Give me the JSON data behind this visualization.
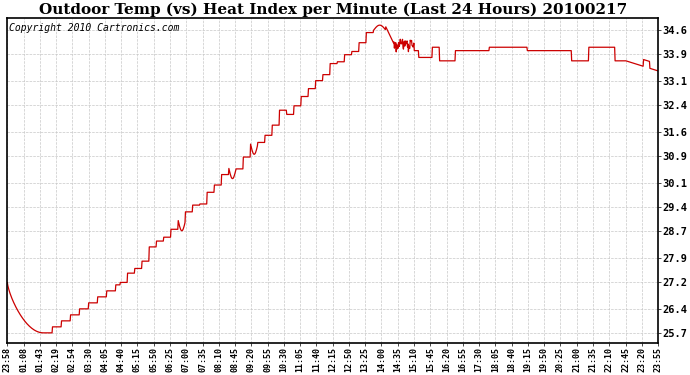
{
  "title": "Outdoor Temp (vs) Heat Index per Minute (Last 24 Hours) 20100217",
  "copyright": "Copyright 2010 Cartronics.com",
  "yticks": [
    25.7,
    26.4,
    27.2,
    27.9,
    28.7,
    29.4,
    30.1,
    30.9,
    31.6,
    32.4,
    33.1,
    33.9,
    34.6
  ],
  "ylim": [
    25.4,
    34.95
  ],
  "xtick_labels": [
    "23:58",
    "01:08",
    "01:43",
    "02:19",
    "02:54",
    "03:30",
    "04:05",
    "04:40",
    "05:15",
    "05:50",
    "06:25",
    "07:00",
    "07:35",
    "08:10",
    "08:45",
    "09:20",
    "09:55",
    "10:30",
    "11:05",
    "11:40",
    "12:15",
    "12:50",
    "13:25",
    "14:00",
    "14:35",
    "15:10",
    "15:45",
    "16:20",
    "16:55",
    "17:30",
    "18:05",
    "18:40",
    "19:15",
    "19:50",
    "20:25",
    "21:00",
    "21:35",
    "22:10",
    "22:45",
    "23:20",
    "23:55"
  ],
  "line_color": "#cc0000",
  "bg_color": "#ffffff",
  "grid_color": "#c8c8c8",
  "title_fontsize": 11,
  "copyright_fontsize": 7,
  "figwidth": 6.9,
  "figheight": 3.75,
  "dpi": 100
}
